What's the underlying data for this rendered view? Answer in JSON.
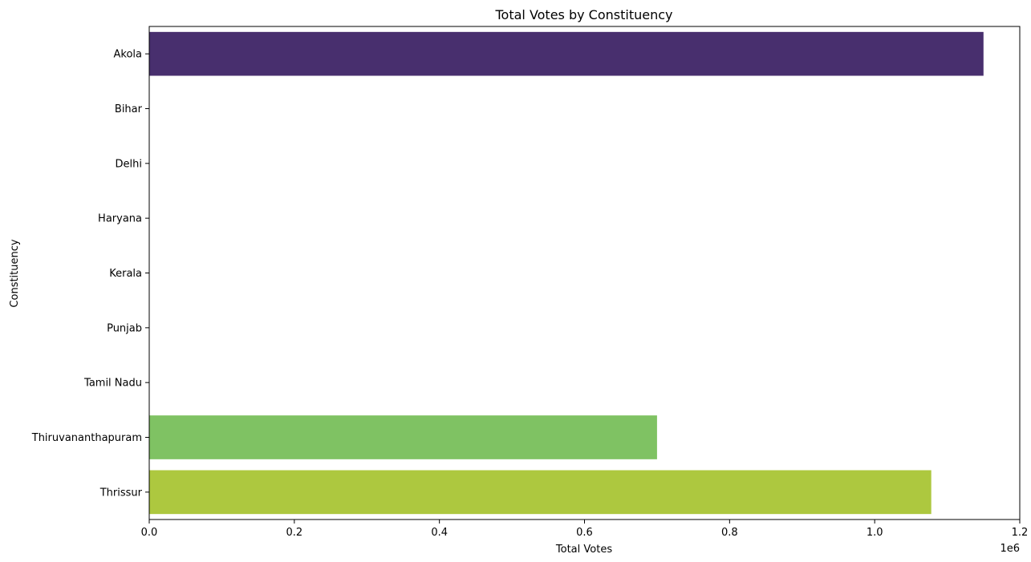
{
  "chart_data": {
    "type": "bar",
    "orientation": "horizontal",
    "title": "Total Votes by Constituency",
    "xlabel": "Total Votes",
    "ylabel": "Constituency",
    "x_scale_label": "1e6",
    "xlim": [
      0,
      1200000
    ],
    "x_ticks": [
      0,
      200000,
      400000,
      600000,
      800000,
      1000000,
      1200000
    ],
    "x_tick_labels": [
      "0.0",
      "0.2",
      "0.4",
      "0.6",
      "0.8",
      "1.0",
      "1.2"
    ],
    "categories": [
      "Akola",
      "Bihar",
      "Delhi",
      "Haryana",
      "Kerala",
      "Punjab",
      "Tamil Nadu",
      "Thiruvananthapuram",
      "Thrissur"
    ],
    "values": [
      1150000,
      0,
      0,
      0,
      0,
      0,
      0,
      700000,
      1078000
    ],
    "colors": [
      "#482f6e",
      "#3e4a89",
      "#31688e",
      "#26828e",
      "#1f9e89",
      "#35b779",
      "#6ece58",
      "#7fc263",
      "#adc83f"
    ],
    "grid": false,
    "legend": "none"
  }
}
